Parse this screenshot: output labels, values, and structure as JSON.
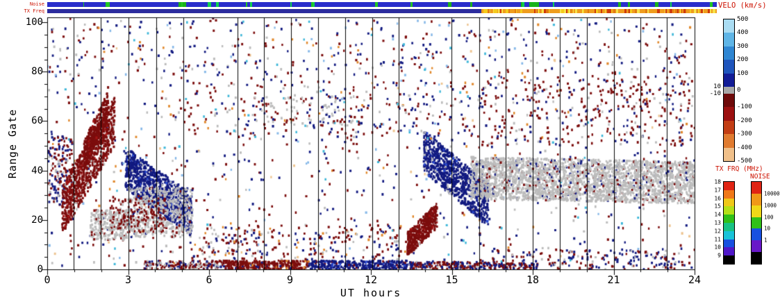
{
  "ui": {
    "label_color": "#cc1100",
    "axis_color": "#000000",
    "background": "#ffffff"
  },
  "strips": {
    "noise": {
      "label": "Noise",
      "base_color": "#2a2ecb",
      "tick_colors": [
        "#19b319",
        "#19b319",
        "#22c622",
        "#0fd14f"
      ],
      "tick_count": 26,
      "wide_tick": {
        "f": 0.72,
        "w": 14,
        "color": "#19b319"
      }
    },
    "tx_freq": {
      "label": "TX Freq",
      "left_color": "#2c2c9e",
      "switch_f": 0.648,
      "right_color": "#ef9d1e",
      "right_tick_colors": [
        "#f3cb1c",
        "#e27a12",
        "#cf3a0c",
        "#f7e24a"
      ],
      "right_tick_count": 90
    }
  },
  "colorbars": {
    "velo": {
      "title": "VELO (km/s)",
      "segments": [
        {
          "color": "#aadcf2",
          "h": 0.0951
        },
        {
          "color": "#5fb5e6",
          "h": 0.0951
        },
        {
          "color": "#2f86d2",
          "h": 0.0951
        },
        {
          "color": "#1f55bc",
          "h": 0.0951
        },
        {
          "color": "#121c96",
          "h": 0.0951
        },
        {
          "color": "#a8a8a8",
          "h": 0.049
        },
        {
          "color": "#6e0a0a",
          "h": 0.0951
        },
        {
          "color": "#9c1010",
          "h": 0.0951
        },
        {
          "color": "#c23d14",
          "h": 0.0951
        },
        {
          "color": "#e07b30",
          "h": 0.0951
        },
        {
          "color": "#f0c08a",
          "h": 0.0951
        }
      ],
      "labels_right": [
        {
          "text": "500",
          "f": 0
        },
        {
          "text": "400",
          "f": 0.0951
        },
        {
          "text": "300",
          "f": 0.1902
        },
        {
          "text": "200",
          "f": 0.2853
        },
        {
          "text": "100",
          "f": 0.3804
        },
        {
          "text": "0",
          "f": 0.5
        },
        {
          "text": "-100",
          "f": 0.6196
        },
        {
          "text": "-200",
          "f": 0.7147
        },
        {
          "text": "-300",
          "f": 0.8098
        },
        {
          "text": "-400",
          "f": 0.9049
        },
        {
          "text": "-500",
          "f": 1.0
        }
      ],
      "labels_left": [
        {
          "text": "10",
          "f": 0.4755
        },
        {
          "text": "-10",
          "f": 0.5245
        }
      ]
    },
    "tx": {
      "title": "TX FRQ (MHz)",
      "segments": [
        {
          "color": "#e02414",
          "h": 0.1
        },
        {
          "color": "#f07818",
          "h": 0.1
        },
        {
          "color": "#f0c818",
          "h": 0.1
        },
        {
          "color": "#b4e018",
          "h": 0.1
        },
        {
          "color": "#30c018",
          "h": 0.1
        },
        {
          "color": "#18c284",
          "h": 0.1
        },
        {
          "color": "#18c2d8",
          "h": 0.1
        },
        {
          "color": "#1850e0",
          "h": 0.1
        },
        {
          "color": "#5018c8",
          "h": 0.1
        },
        {
          "color": "#000000",
          "h": 0.1
        }
      ],
      "labels_left": [
        {
          "text": "18",
          "f": 0
        },
        {
          "text": "17",
          "f": 0.1
        },
        {
          "text": "16",
          "f": 0.2
        },
        {
          "text": "15",
          "f": 0.3
        },
        {
          "text": "14",
          "f": 0.4
        },
        {
          "text": "13",
          "f": 0.5
        },
        {
          "text": "12",
          "f": 0.6
        },
        {
          "text": "11",
          "f": 0.7
        },
        {
          "text": "10",
          "f": 0.8
        },
        {
          "text": "9",
          "f": 0.9
        }
      ]
    },
    "noise": {
      "title": "NOISE",
      "segments": [
        {
          "color": "#e02414",
          "h": 0.1429
        },
        {
          "color": "#f09818",
          "h": 0.1429
        },
        {
          "color": "#f0d818",
          "h": 0.1429
        },
        {
          "color": "#30c018",
          "h": 0.1429
        },
        {
          "color": "#1850e0",
          "h": 0.1429
        },
        {
          "color": "#6818c8",
          "h": 0.1429
        },
        {
          "color": "#000000",
          "h": 0.1429
        }
      ],
      "labels_right": [
        {
          "text": "10000",
          "f": 0.143
        },
        {
          "text": "1000",
          "f": 0.286
        },
        {
          "text": "100",
          "f": 0.429
        },
        {
          "text": "10",
          "f": 0.571
        },
        {
          "text": "1",
          "f": 0.714
        }
      ]
    }
  },
  "chart_data": {
    "type": "scatter",
    "plot_kind": "range-time parameter plot (radar velocity vs UT)",
    "xlabel": "UT hours",
    "ylabel": "Range Gate",
    "xlim": [
      0,
      24
    ],
    "ylim": [
      0,
      102
    ],
    "x_ticks": [
      0,
      3,
      6,
      9,
      12,
      15,
      18,
      21,
      24
    ],
    "y_ticks": [
      0,
      20,
      40,
      60,
      80,
      100
    ],
    "x_minor_step": 1,
    "y_minor_step": 5,
    "vertical_lines": [
      0.98,
      1.98,
      3.01,
      4.04,
      5.05,
      7.06,
      8.03,
      9.04,
      10.04,
      11.05,
      12.05,
      13.03,
      14.99,
      16.02,
      17.0,
      18.0,
      19.0,
      20.01,
      21.01,
      21.99,
      22.97
    ],
    "render_seed": 7,
    "palette": {
      "darkred": "#7c0d0d",
      "red": "#a51414",
      "navy": "#121a80",
      "blue": "#2a4ad0",
      "lightblue": "#86b8e8",
      "cyan": "#3cb6d8",
      "gray": "#bcbcbc",
      "orange": "#e0872a",
      "tan": "#edc490"
    },
    "features": [
      {
        "kind": "box",
        "t": [
          0,
          24
        ],
        "g": [
          0,
          102
        ],
        "n": 1000,
        "colors": [
          [
            "navy",
            0.32
          ],
          [
            "darkred",
            0.32
          ],
          [
            "gray",
            0.13
          ],
          [
            "orange",
            0.07
          ],
          [
            "lightblue",
            0.06
          ],
          [
            "cyan",
            0.05
          ],
          [
            "tan",
            0.05
          ]
        ]
      },
      {
        "kind": "box",
        "t": [
          0.05,
          0.95
        ],
        "g": [
          26,
          54
        ],
        "n": 170,
        "colors": [
          [
            "darkred",
            0.45
          ],
          [
            "navy",
            0.35
          ],
          [
            "gray",
            0.2
          ]
        ]
      },
      {
        "kind": "band",
        "t": [
          0.55,
          2.5
        ],
        "gc": [
          24,
          60
        ],
        "spread": 20,
        "n": 850,
        "colors": [
          [
            "darkred",
            0.87
          ],
          [
            "red",
            0.08
          ],
          [
            "gray",
            0.05
          ]
        ]
      },
      {
        "kind": "band",
        "t": [
          1.35,
          2.25
        ],
        "gc": [
          46,
          66
        ],
        "spread": 12,
        "n": 350,
        "colors": [
          [
            "darkred",
            0.95
          ],
          [
            "red",
            0.05
          ]
        ]
      },
      {
        "kind": "band",
        "t": [
          2.9,
          5.35
        ],
        "gc": [
          41,
          22
        ],
        "spread": 17,
        "n": 950,
        "colors": [
          [
            "navy",
            0.9
          ],
          [
            "blue",
            0.05
          ],
          [
            "gray",
            0.05
          ]
        ]
      },
      {
        "kind": "box",
        "t": [
          1.6,
          3.0
        ],
        "g": [
          12,
          24
        ],
        "n": 300,
        "colors": [
          [
            "gray",
            0.85
          ],
          [
            "darkred",
            0.15
          ]
        ]
      },
      {
        "kind": "box",
        "t": [
          3.0,
          5.4
        ],
        "g": [
          13,
          33
        ],
        "n": 520,
        "colors": [
          [
            "gray",
            0.88
          ],
          [
            "darkred",
            0.07
          ],
          [
            "navy",
            0.05
          ]
        ]
      },
      {
        "kind": "box",
        "t": [
          2.3,
          4.4
        ],
        "g": [
          15,
          29
        ],
        "n": 170,
        "colors": [
          [
            "darkred",
            0.8
          ],
          [
            "gray",
            0.2
          ]
        ]
      },
      {
        "kind": "box",
        "t": [
          3.6,
          6.5
        ],
        "g": [
          0,
          3.5
        ],
        "n": 200,
        "colors": [
          [
            "darkred",
            0.5
          ],
          [
            "gray",
            0.28
          ],
          [
            "navy",
            0.22
          ]
        ]
      },
      {
        "kind": "box",
        "t": [
          6.5,
          9.7
        ],
        "g": [
          0,
          3.5
        ],
        "n": 320,
        "colors": [
          [
            "darkred",
            0.9
          ],
          [
            "navy",
            0.06
          ],
          [
            "orange",
            0.04
          ]
        ]
      },
      {
        "kind": "box",
        "t": [
          9.7,
          13.4
        ],
        "g": [
          0,
          3.5
        ],
        "n": 320,
        "colors": [
          [
            "navy",
            0.84
          ],
          [
            "darkred",
            0.1
          ],
          [
            "blue",
            0.06
          ]
        ]
      },
      {
        "kind": "box",
        "t": [
          13.4,
          16.6
        ],
        "g": [
          0,
          3
        ],
        "n": 220,
        "colors": [
          [
            "darkred",
            0.58
          ],
          [
            "navy",
            0.38
          ],
          [
            "gray",
            0.04
          ]
        ]
      },
      {
        "kind": "box",
        "t": [
          16.6,
          18.2
        ],
        "g": [
          0,
          2.5
        ],
        "n": 70,
        "colors": [
          [
            "darkred",
            0.5
          ],
          [
            "navy",
            0.5
          ]
        ]
      },
      {
        "kind": "band",
        "t": [
          13.35,
          14.45
        ],
        "gc": [
          10,
          22
        ],
        "spread": 10,
        "n": 480,
        "colors": [
          [
            "darkred",
            0.92
          ],
          [
            "red",
            0.05
          ],
          [
            "gray",
            0.03
          ]
        ]
      },
      {
        "kind": "band",
        "t": [
          13.95,
          16.35
        ],
        "gc": [
          48,
          26
        ],
        "spread": 17,
        "n": 900,
        "colors": [
          [
            "navy",
            0.88
          ],
          [
            "blue",
            0.06
          ],
          [
            "gray",
            0.06
          ]
        ]
      },
      {
        "kind": "band",
        "t": [
          15.7,
          24
        ],
        "gc": [
          37,
          35
        ],
        "spread": 17,
        "n": 2700,
        "colors": [
          [
            "gray",
            0.9
          ],
          [
            "darkred",
            0.06
          ],
          [
            "navy",
            0.04
          ]
        ]
      },
      {
        "kind": "box",
        "t": [
          16,
          24
        ],
        "g": [
          50,
          78
        ],
        "n": 330,
        "colors": [
          [
            "darkred",
            0.72
          ],
          [
            "navy",
            0.18
          ],
          [
            "gray",
            0.1
          ]
        ]
      },
      {
        "kind": "box",
        "t": [
          5,
          16
        ],
        "g": [
          52,
          76
        ],
        "n": 210,
        "colors": [
          [
            "darkred",
            0.42
          ],
          [
            "navy",
            0.32
          ],
          [
            "gray",
            0.16
          ],
          [
            "orange",
            0.05
          ],
          [
            "cyan",
            0.05
          ]
        ]
      },
      {
        "kind": "box",
        "t": [
          0,
          24
        ],
        "g": [
          78,
          101
        ],
        "n": 300,
        "colors": [
          [
            "navy",
            0.38
          ],
          [
            "darkred",
            0.3
          ],
          [
            "gray",
            0.12
          ],
          [
            "lightblue",
            0.1
          ],
          [
            "orange",
            0.06
          ],
          [
            "cyan",
            0.04
          ]
        ]
      },
      {
        "kind": "box",
        "t": [
          5.3,
          13.3
        ],
        "g": [
          4,
          18
        ],
        "n": 240,
        "colors": [
          [
            "darkred",
            0.5
          ],
          [
            "navy",
            0.28
          ],
          [
            "gray",
            0.12
          ],
          [
            "orange",
            0.1
          ]
        ]
      },
      {
        "kind": "box",
        "t": [
          16.5,
          24
        ],
        "g": [
          0,
          8
        ],
        "n": 190,
        "colors": [
          [
            "navy",
            0.45
          ],
          [
            "darkred",
            0.45
          ],
          [
            "gray",
            0.1
          ]
        ]
      },
      {
        "kind": "box",
        "t": [
          7.6,
          11.6
        ],
        "g": [
          58,
          70
        ],
        "n": 90,
        "colors": [
          [
            "gray",
            0.6
          ],
          [
            "darkred",
            0.25
          ],
          [
            "navy",
            0.15
          ]
        ]
      }
    ]
  }
}
